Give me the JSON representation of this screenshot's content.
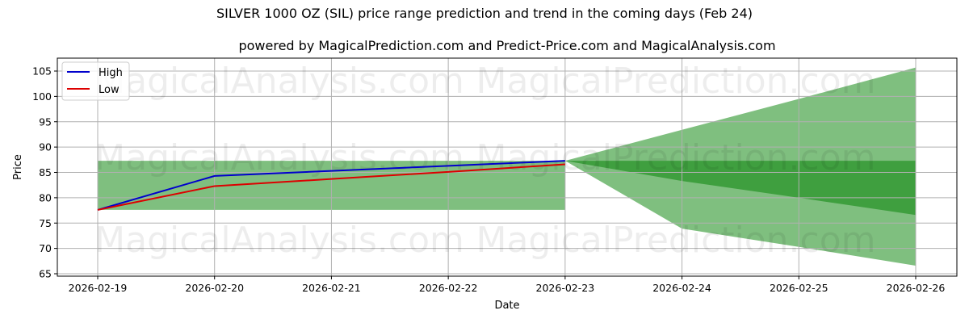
{
  "chart_data": {
    "type": "line",
    "title": "SILVER 1000 OZ (SIL) price range prediction and trend in the coming days (Feb 24)",
    "subtitle": "powered by MagicalPrediction.com and Predict-Price.com and MagicalAnalysis.com",
    "xlabel": "Date",
    "ylabel": "Price",
    "x": [
      "2026-02-19",
      "2026-02-20",
      "2026-02-21",
      "2026-02-22",
      "2026-02-23",
      "2026-02-24",
      "2026-02-25",
      "2026-02-26"
    ],
    "yticks": [
      65,
      70,
      75,
      80,
      85,
      90,
      95,
      100,
      105
    ],
    "ylim": [
      64.5,
      107.5
    ],
    "grid": true,
    "legend_position": "upper left",
    "series": [
      {
        "name": "High",
        "color": "#0000cc",
        "x": [
          "2026-02-19",
          "2026-02-20",
          "2026-02-21",
          "2026-02-22",
          "2026-02-23"
        ],
        "values": [
          77.6,
          84.3,
          85.3,
          86.3,
          87.3
        ]
      },
      {
        "name": "Low",
        "color": "#dd0000",
        "x": [
          "2026-02-19",
          "2026-02-20",
          "2026-02-21",
          "2026-02-22",
          "2026-02-23"
        ],
        "values": [
          77.6,
          82.3,
          83.7,
          85.1,
          86.6
        ]
      }
    ],
    "bands": [
      {
        "name": "historical-range",
        "color": "#7fbf7f",
        "x": [
          "2026-02-19",
          "2026-02-23"
        ],
        "upper": [
          87.3,
          87.3
        ],
        "lower": [
          77.6,
          77.6
        ]
      },
      {
        "name": "prediction-outer-range",
        "color": "#7fbf7f",
        "x": [
          "2026-02-23",
          "2026-02-24",
          "2026-02-25",
          "2026-02-26"
        ],
        "upper": [
          87.3,
          93.4,
          99.5,
          105.7
        ],
        "lower": [
          87.3,
          73.9,
          70.3,
          66.6
        ]
      },
      {
        "name": "prediction-inner-range",
        "color": "#3f9f3f",
        "x": [
          "2026-02-23",
          "2026-02-24",
          "2026-02-25",
          "2026-02-26"
        ],
        "upper": [
          87.3,
          87.3,
          87.3,
          87.3
        ],
        "lower": [
          87.3,
          83.3,
          80.0,
          76.6
        ]
      }
    ],
    "watermarks": [
      "MagicalAnalysis.com",
      "MagicalPrediction.com"
    ]
  },
  "legend": {
    "high_label": "High",
    "low_label": "Low"
  }
}
